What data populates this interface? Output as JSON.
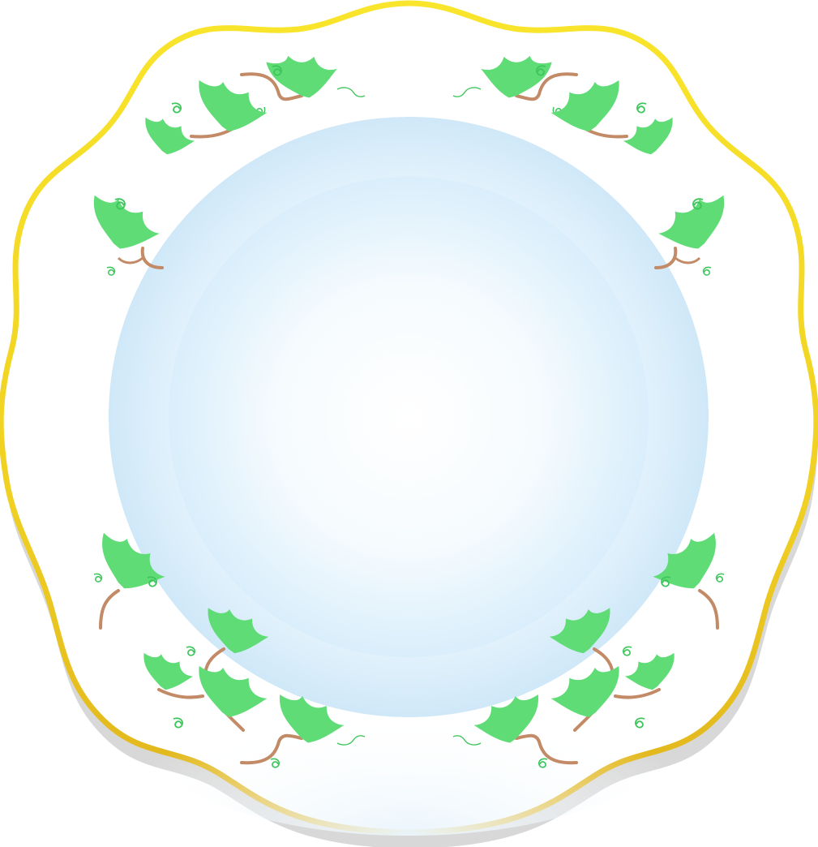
{
  "image": {
    "subject": "decorated plate",
    "icons": [
      "scalloped-plate-rim-icon",
      "ivy-leaf-icon",
      "vine-stem-icon",
      "tendril-icon"
    ]
  },
  "colors": {
    "rim_gold_top": "#f7e22a",
    "rim_gold_bottom": "#e0b51c",
    "rim_shadow": "#d6d6d6",
    "plate_white": "#ffffff",
    "well_outer": "#d7ecf9",
    "well_inner": "#ffffff",
    "leaf_green": "#5fdc76",
    "stem_brown": "#c28a66",
    "tendril_green": "#3ec55c"
  }
}
